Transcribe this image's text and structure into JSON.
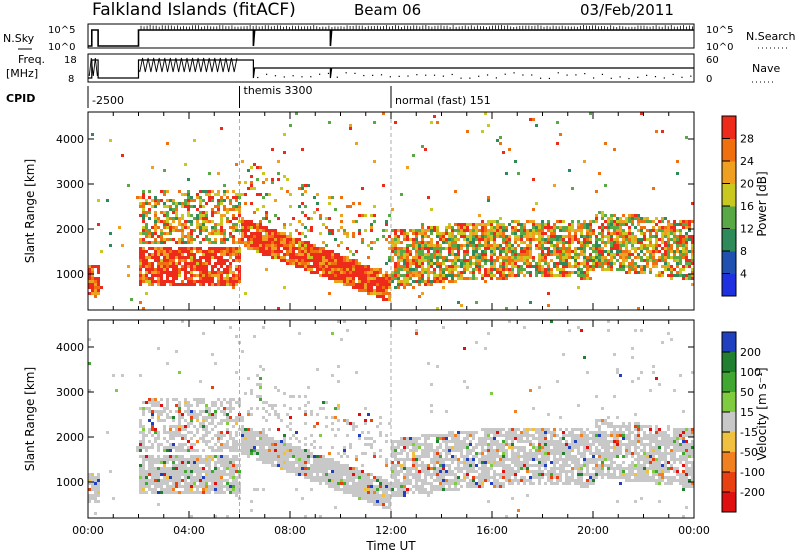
{
  "header": {
    "station": "Falkland Islands (fitACF)",
    "beam": "Beam 06",
    "date": "03/Feb/2011"
  },
  "strips": {
    "nsky_label": "N.Sky",
    "nsky_ticks": [
      "10^5",
      "10^0"
    ],
    "nsearch_label": "N.Search",
    "nsearch_ticks": [
      "10^5",
      "10^0"
    ],
    "freq_label_line1": "Freq.",
    "freq_label_line2": "[MHz]",
    "freq_ticks": [
      "18",
      "8"
    ],
    "nave_label": "Nave",
    "nave_ticks": [
      "60",
      "0"
    ],
    "cpid_label": "CPID",
    "cpid_segments": [
      {
        "start_ut": 0.0,
        "label": "-2500"
      },
      {
        "start_ut": 6.0,
        "label": "themis 3300"
      },
      {
        "start_ut": 12.0,
        "label": "normal (fast) 151"
      }
    ]
  },
  "chart_data": [
    {
      "type": "heatmap",
      "name": "power",
      "ylabel": "Slant Range [km]",
      "yticks": [
        "1000",
        "2000",
        "3000",
        "4000"
      ],
      "ylim": [
        200,
        4600
      ],
      "xlim_hours": [
        0,
        24
      ],
      "colorbar_label": "Power [dB]",
      "colorbar_ticks": [
        "4",
        "8",
        "12",
        "16",
        "20",
        "24",
        "28"
      ],
      "colors": [
        "#1f30e0",
        "#2050b0",
        "#2e8a58",
        "#58a846",
        "#c8c820",
        "#f0a020",
        "#f07010",
        "#ee2a1a"
      ]
    },
    {
      "type": "heatmap",
      "name": "velocity",
      "ylabel": "Slant Range [km]",
      "yticks": [
        "1000",
        "2000",
        "3000",
        "4000"
      ],
      "ylim": [
        200,
        4600
      ],
      "xlim_hours": [
        0,
        24
      ],
      "xticks": [
        "00:00",
        "04:00",
        "08:00",
        "12:00",
        "16:00",
        "20:00",
        "00:00"
      ],
      "xlabel": "Time UT",
      "colorbar_label": "Velocity [m s⁻¹]",
      "colorbar_ticks": [
        "200",
        "100",
        "50",
        "15",
        "-15",
        "-50",
        "-100",
        "-200"
      ],
      "colors": [
        "#2040c0",
        "#208030",
        "#40a830",
        "#80cc40",
        "#c8c8c8",
        "#f0c040",
        "#f08020",
        "#e84010",
        "#e01010"
      ]
    }
  ]
}
